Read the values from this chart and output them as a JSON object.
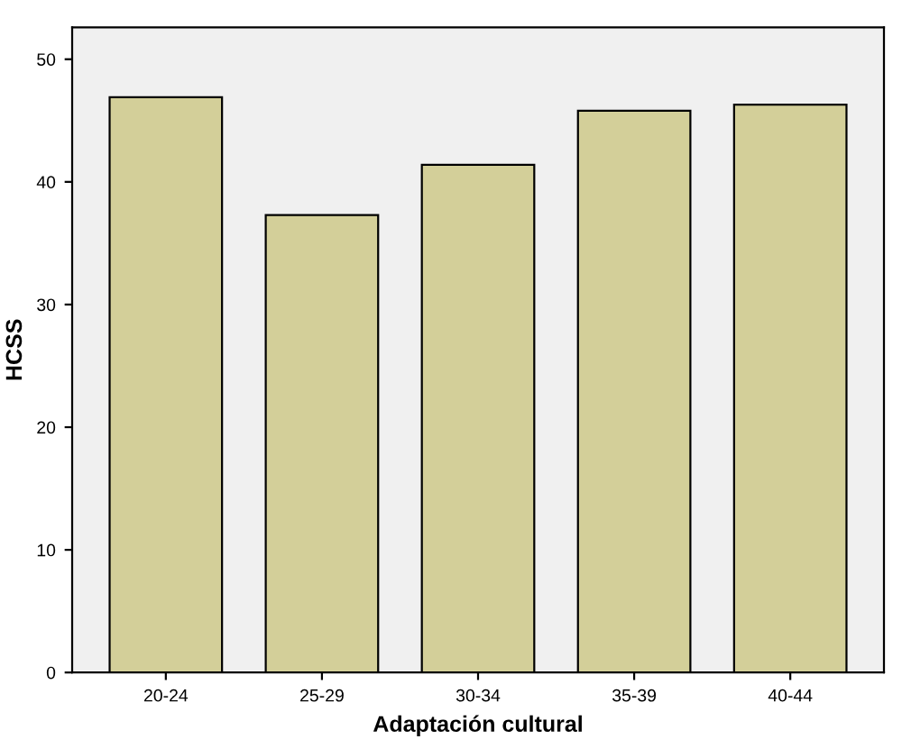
{
  "chart_data": {
    "type": "bar",
    "xlabel": "Adaptación cultural",
    "ylabel": "HCSS",
    "categories": [
      "20-24",
      "25-29",
      "30-34",
      "35-39",
      "40-44"
    ],
    "values": [
      46.9,
      37.3,
      41.4,
      45.8,
      46.3
    ],
    "color": "#d3cf99",
    "ylim": [
      0,
      52.6
    ],
    "yticks": [
      0,
      10,
      20,
      30,
      40,
      50
    ],
    "grid": false,
    "legend": false
  }
}
